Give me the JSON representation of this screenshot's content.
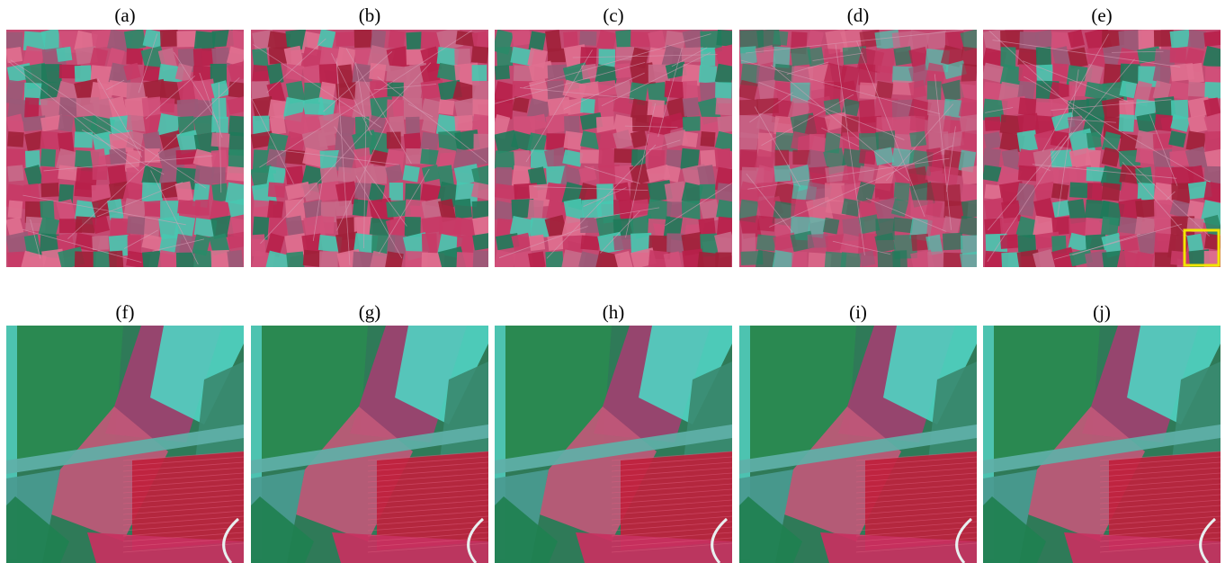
{
  "figure": {
    "panels": [
      {
        "label": "(a)"
      },
      {
        "label": "(b)"
      },
      {
        "label": "(c)"
      },
      {
        "label": "(d)"
      },
      {
        "label": "(e)"
      },
      {
        "label": "(f)"
      },
      {
        "label": "(g)"
      },
      {
        "label": "(h)"
      },
      {
        "label": "(i)"
      },
      {
        "label": "(j)"
      }
    ]
  }
}
